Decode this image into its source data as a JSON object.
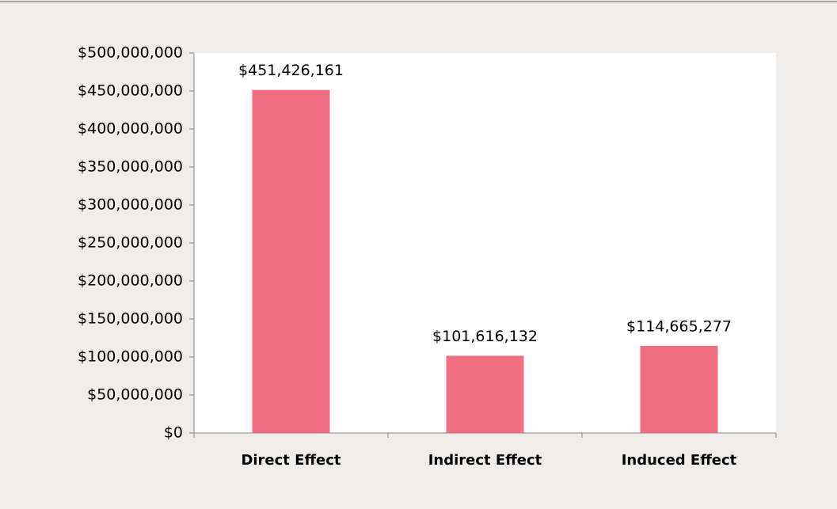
{
  "chart_data": {
    "type": "bar",
    "categories": [
      "Direct Effect",
      "Indirect Effect",
      "Induced Effect"
    ],
    "values": [
      451426161,
      101616132,
      114665277
    ],
    "value_labels": [
      "$451,426,161",
      "$101,616,132",
      "$114,665,277"
    ],
    "color": "#f06e80",
    "ylim": [
      0,
      500000000
    ],
    "yticks": [
      {
        "value": 0,
        "label": "$0"
      },
      {
        "value": 50000000,
        "label": "$50,000,000"
      },
      {
        "value": 100000000,
        "label": "$100,000,000"
      },
      {
        "value": 150000000,
        "label": "$150,000,000"
      },
      {
        "value": 200000000,
        "label": "$200,000,000"
      },
      {
        "value": 250000000,
        "label": "$250,000,000"
      },
      {
        "value": 300000000,
        "label": "$300,000,000"
      },
      {
        "value": 350000000,
        "label": "$350,000,000"
      },
      {
        "value": 400000000,
        "label": "$400,000,000"
      },
      {
        "value": 450000000,
        "label": "$450,000,000"
      },
      {
        "value": 500000000,
        "label": "$500,000,000"
      }
    ],
    "grid": false
  }
}
